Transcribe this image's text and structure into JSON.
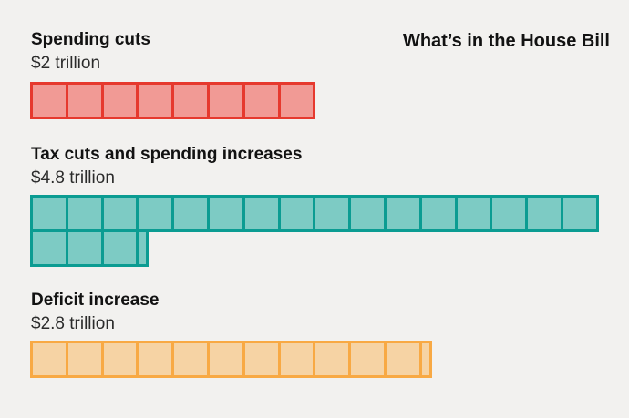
{
  "title": "What’s in the House Bill",
  "background_color": "#f2f1ef",
  "text_color": "#121212",
  "chart_data": {
    "type": "waffle-bar",
    "title": "What’s in the House Bill",
    "unit_per_square_trillions": 0.25,
    "squares_per_row": 16,
    "legend_position": "none",
    "grid": false,
    "series": [
      {
        "label": "Spending cuts",
        "value_label": "$2 trillion",
        "value_trillions": 2.0,
        "squares": 8,
        "fill_color": "#F19A95",
        "border_color": "#E6392E"
      },
      {
        "label": "Tax cuts and spending increases",
        "value_label": "$4.8 trillion",
        "value_trillions": 4.8,
        "squares": 19.2,
        "fill_color": "#7DCBC4",
        "border_color": "#0B9C92"
      },
      {
        "label": "Deficit increase",
        "value_label": "$2.8 trillion",
        "value_trillions": 2.8,
        "squares": 11.2,
        "fill_color": "#F6D3A4",
        "border_color": "#F8A944"
      }
    ]
  }
}
